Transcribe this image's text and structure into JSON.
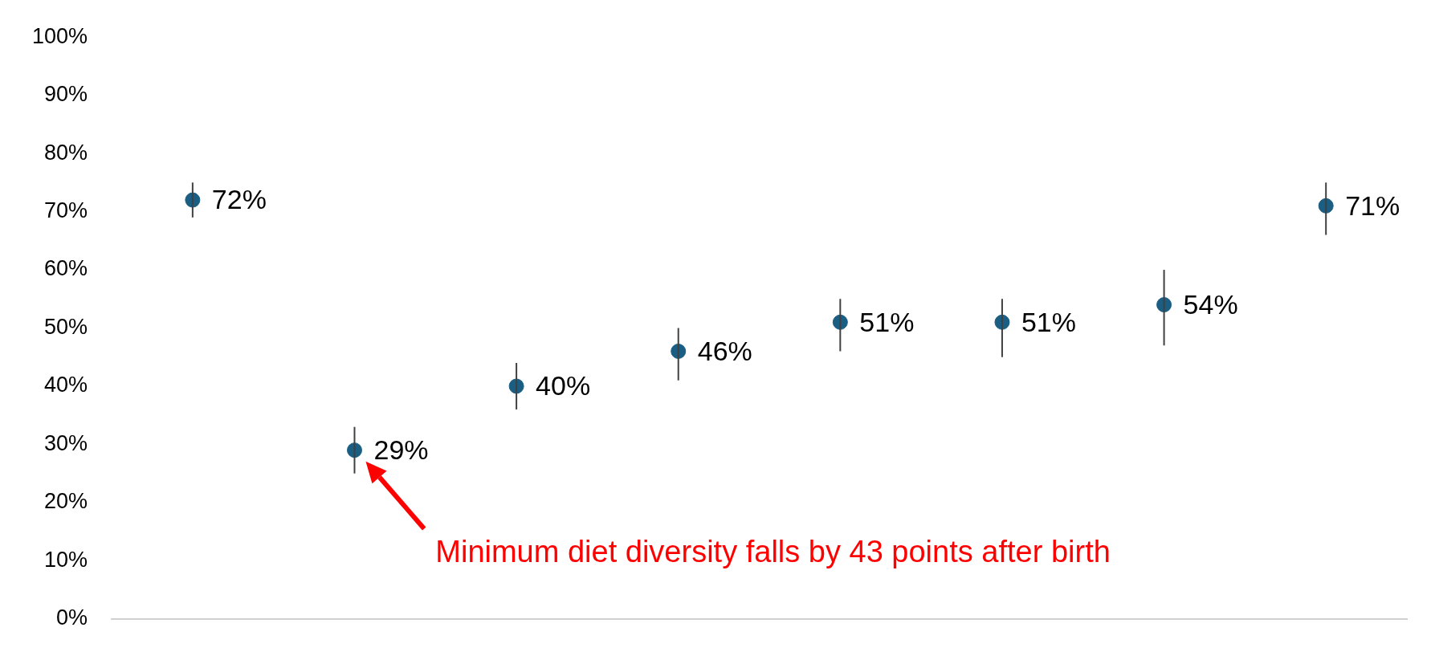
{
  "chart_data": {
    "type": "scatter",
    "categories": [
      null,
      null,
      null,
      null,
      null,
      null,
      null,
      null
    ],
    "values": [
      72,
      29,
      40,
      46,
      51,
      51,
      54,
      71
    ],
    "color": "#1b5e83",
    "errors": [
      [
        69,
        75
      ],
      [
        25,
        33
      ],
      [
        36,
        44
      ],
      [
        41,
        50
      ],
      [
        46,
        55
      ],
      [
        45,
        55
      ],
      [
        47,
        60
      ],
      [
        66,
        75
      ]
    ],
    "value_labels": [
      "72%",
      "29%",
      "40%",
      "46%",
      "51%",
      "51%",
      "54%",
      "71%"
    ],
    "ylim": [
      0,
      100
    ],
    "yticks": [
      {
        "value": 0,
        "label": "0%"
      },
      {
        "value": 10,
        "label": "10%"
      },
      {
        "value": 20,
        "label": "20%"
      },
      {
        "value": 30,
        "label": "30%"
      },
      {
        "value": 40,
        "label": "40%"
      },
      {
        "value": 50,
        "label": "50%"
      },
      {
        "value": 60,
        "label": "60%"
      },
      {
        "value": 70,
        "label": "70%"
      },
      {
        "value": 80,
        "label": "80%"
      },
      {
        "value": 90,
        "label": "90%"
      },
      {
        "value": 100,
        "label": "100%"
      }
    ],
    "annotations": [
      "Minimum diet diversity falls by 43 points after birth"
    ],
    "marker": "circle",
    "tick_labels": "y",
    "grid": false,
    "legend": false
  }
}
